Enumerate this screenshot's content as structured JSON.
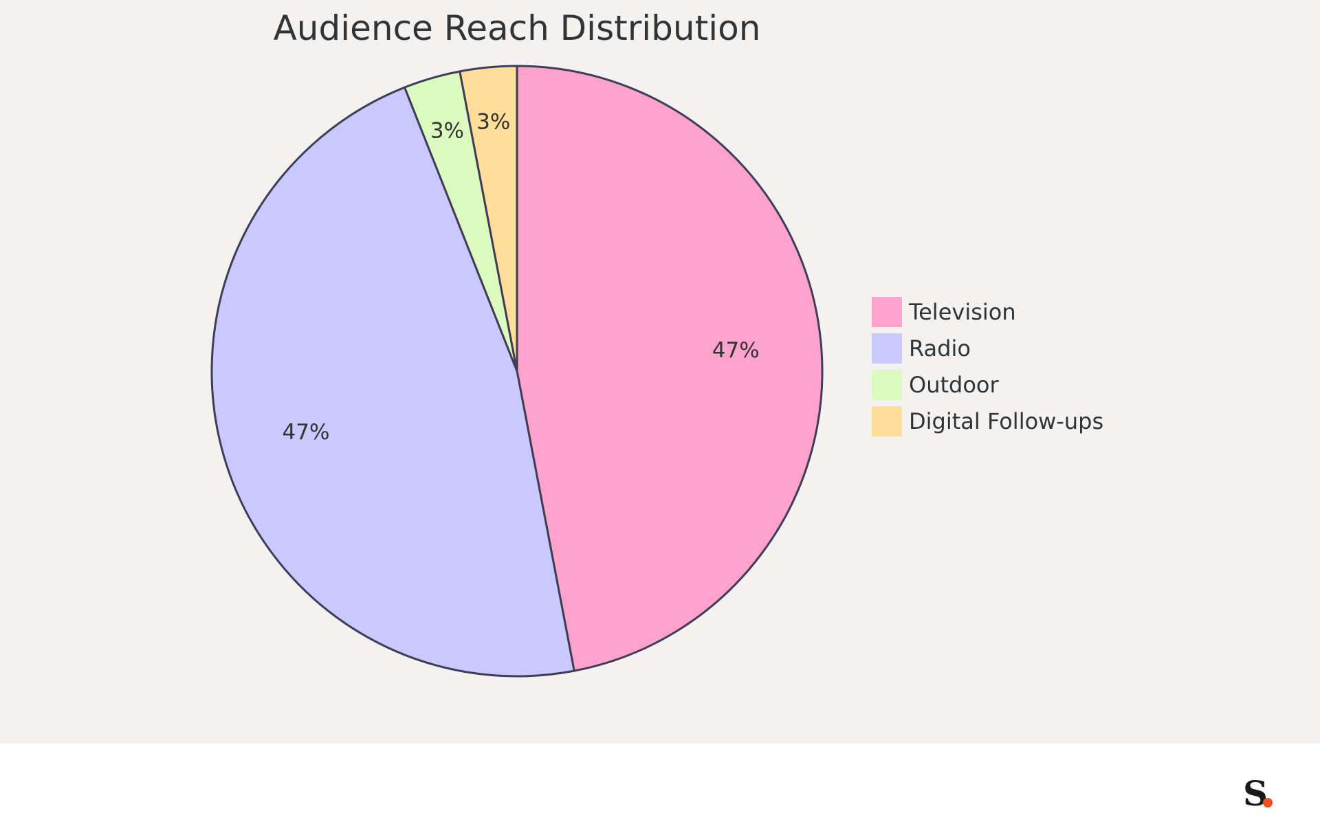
{
  "chart_data": {
    "type": "pie",
    "title": "Audience Reach Distribution",
    "categories": [
      "Television",
      "Radio",
      "Outdoor",
      "Digital Follow-ups"
    ],
    "values": [
      47,
      47,
      3,
      3
    ],
    "labels": [
      "47%",
      "47%",
      "3%",
      "3%"
    ],
    "colors": [
      "#ffa3cc",
      "#c9c9ff",
      "#dcfcbf",
      "#ffde99"
    ],
    "legend_position": "right"
  },
  "branding": {
    "logo_letter": "S",
    "logo_dot_color": "#f04e23"
  },
  "colors": {
    "background": "#f3f2f1",
    "stroke": "#3f3d56",
    "text": "#333333"
  }
}
